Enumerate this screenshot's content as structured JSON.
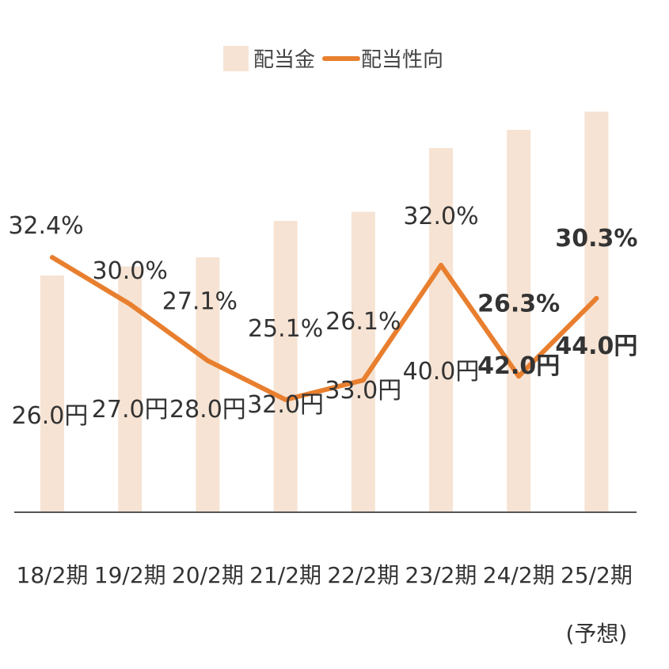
{
  "chart_data": {
    "type": "bar",
    "categories": [
      "18/2期",
      "19/2期",
      "20/2期",
      "21/2期",
      "22/2期",
      "23/2期",
      "24/2期",
      "25/2期"
    ],
    "category_note": {
      "index": 7,
      "text": "(予想)"
    },
    "series": [
      {
        "name": "配当金",
        "type": "bar",
        "values": [
          26.0,
          27.0,
          28.0,
          32.0,
          33.0,
          40.0,
          42.0,
          44.0
        ],
        "labels": [
          "26.0円",
          "27.0円",
          "28.0円",
          "32.0円",
          "33.0円",
          "40.0円",
          "42.0円",
          "44.0円"
        ],
        "color": "#f6e3d3"
      },
      {
        "name": "配当性向",
        "type": "line",
        "values": [
          32.4,
          30.0,
          27.1,
          25.1,
          26.1,
          32.0,
          26.3,
          30.3
        ],
        "labels": [
          "32.4%",
          "30.0%",
          "27.1%",
          "25.1%",
          "26.1%",
          "32.0%",
          "26.3%",
          "30.3%"
        ],
        "color": "#e87f2f"
      }
    ],
    "bold_label_indices": [
      6,
      7
    ],
    "legend_position": "top-center",
    "grid": false
  }
}
